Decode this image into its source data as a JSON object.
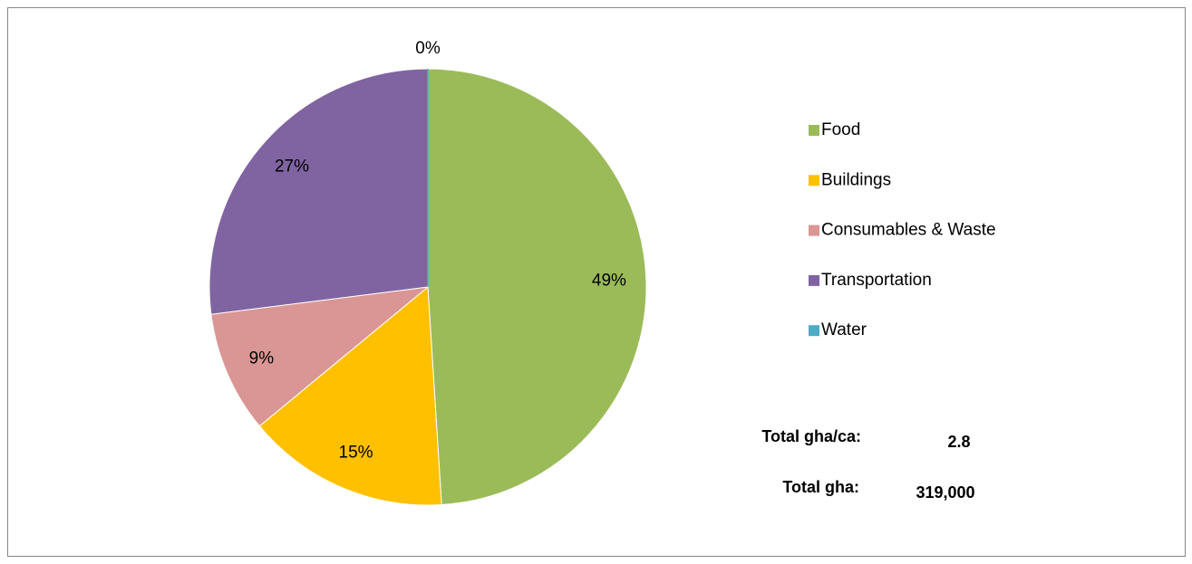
{
  "chart_data": {
    "type": "pie",
    "categories": [
      "Food",
      "Buildings",
      "Consumables & Waste",
      "Transportation",
      "Water"
    ],
    "values": [
      49,
      15,
      9,
      27,
      0
    ],
    "value_labels": [
      "49%",
      "15%",
      "9%",
      "27%",
      "0%"
    ],
    "colors": [
      "#9bbb59",
      "#ffc000",
      "#d99694",
      "#8064a2",
      "#4bacc6"
    ],
    "legend": "right",
    "annotations": [
      {
        "label": "Total gha/ca:",
        "value": "2.8"
      },
      {
        "label": "Total gha:",
        "value": "319,000"
      }
    ]
  }
}
